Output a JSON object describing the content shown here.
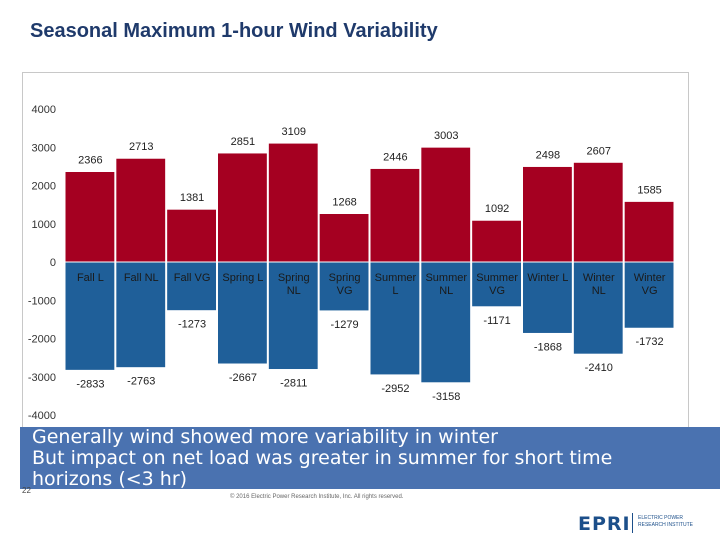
{
  "slide": {
    "title": "Seasonal Maximum 1-hour Wind Variability",
    "bullets": [
      "Generally wind showed more variability in winter",
      "But impact on net load was greater in summer for short time horizons (<3 hr)"
    ],
    "page_number": "22",
    "copyright": "© 2016 Electric Power Research Institute, Inc. All rights reserved.",
    "logo_text": "EPRI",
    "logo_subtitle": "ELECTRIC POWER RESEARCH INSTITUTE"
  },
  "colors": {
    "positive": "#a50021",
    "negative": "#1f5f99",
    "title": "#1f3a6b",
    "banner": "#4a72b0"
  },
  "chart_data": {
    "type": "bar",
    "categories": [
      [
        "Fall L"
      ],
      [
        "Fall NL"
      ],
      [
        "Fall VG"
      ],
      [
        "Spring L"
      ],
      [
        "Spring",
        "NL"
      ],
      [
        "Spring",
        "VG"
      ],
      [
        "Summer",
        "L"
      ],
      [
        "Summer",
        "NL"
      ],
      [
        "Summer",
        "VG"
      ],
      [
        "Winter L"
      ],
      [
        "Winter",
        "NL"
      ],
      [
        "Winter",
        "VG"
      ]
    ],
    "series": [
      {
        "values": [
          2366,
          2713,
          1381,
          2851,
          3109,
          1268,
          2446,
          3003,
          1092,
          2498,
          2607,
          1585
        ]
      },
      {
        "values": [
          -2833,
          -2763,
          -1273,
          -2667,
          -2811,
          -1279,
          -2952,
          -3158,
          -1171,
          -1868,
          -2410,
          -1732
        ]
      }
    ],
    "ylim": [
      -4000,
      4000
    ],
    "yticks": [
      4000,
      3000,
      2000,
      1000,
      0,
      -1000,
      -2000,
      -3000,
      -4000
    ],
    "grid": false,
    "xlabel": "",
    "ylabel": ""
  }
}
